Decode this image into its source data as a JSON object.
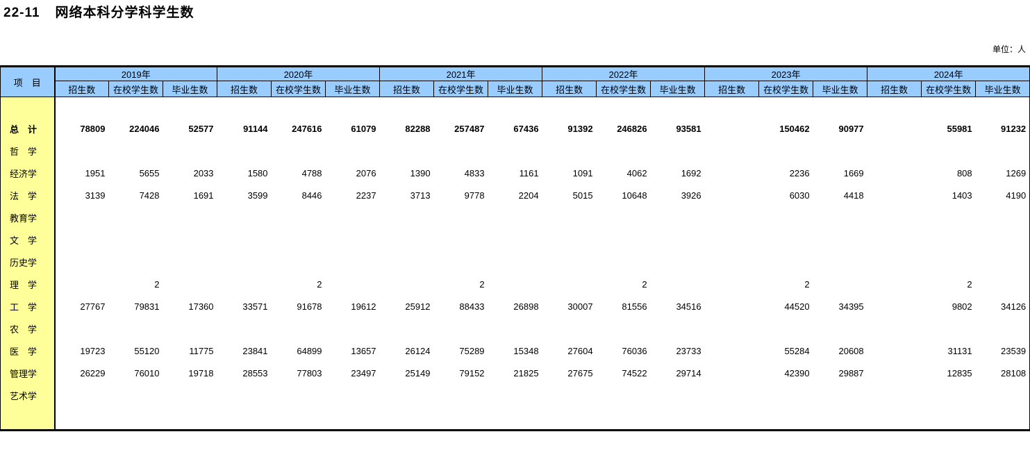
{
  "page": {
    "table_no": "22-11",
    "title": "网络本科分学科学生数",
    "unit_label": "单位：人"
  },
  "colors": {
    "header_bg": "#99CCFF",
    "stub_bg": "#FFFF99",
    "border": "#000000"
  },
  "table": {
    "stub_header": "项　目",
    "years": [
      "2019年",
      "2020年",
      "2021年",
      "2022年",
      "2023年",
      "2024年"
    ],
    "sub_headers": [
      "招生数",
      "在校学生数",
      "毕业生数"
    ],
    "rows": [
      {
        "label": "总　计",
        "bold": true,
        "values": [
          "78809",
          "224046",
          "52577",
          "91144",
          "247616",
          "61079",
          "82288",
          "257487",
          "67436",
          "91392",
          "246826",
          "93581",
          "",
          "150462",
          "90977",
          "",
          "55981",
          "91232"
        ]
      },
      {
        "label": "哲　学",
        "bold": false,
        "values": [
          "",
          "",
          "",
          "",
          "",
          "",
          "",
          "",
          "",
          "",
          "",
          "",
          "",
          "",
          "",
          "",
          "",
          ""
        ]
      },
      {
        "label": "经济学",
        "bold": false,
        "values": [
          "1951",
          "5655",
          "2033",
          "1580",
          "4788",
          "2076",
          "1390",
          "4833",
          "1161",
          "1091",
          "4062",
          "1692",
          "",
          "2236",
          "1669",
          "",
          "808",
          "1269"
        ]
      },
      {
        "label": "法　学",
        "bold": false,
        "values": [
          "3139",
          "7428",
          "1691",
          "3599",
          "8446",
          "2237",
          "3713",
          "9778",
          "2204",
          "5015",
          "10648",
          "3926",
          "",
          "6030",
          "4418",
          "",
          "1403",
          "4190"
        ]
      },
      {
        "label": "教育学",
        "bold": false,
        "values": [
          "",
          "",
          "",
          "",
          "",
          "",
          "",
          "",
          "",
          "",
          "",
          "",
          "",
          "",
          "",
          "",
          "",
          ""
        ]
      },
      {
        "label": "文　学",
        "bold": false,
        "values": [
          "",
          "",
          "",
          "",
          "",
          "",
          "",
          "",
          "",
          "",
          "",
          "",
          "",
          "",
          "",
          "",
          "",
          ""
        ]
      },
      {
        "label": "历史学",
        "bold": false,
        "values": [
          "",
          "",
          "",
          "",
          "",
          "",
          "",
          "",
          "",
          "",
          "",
          "",
          "",
          "",
          "",
          "",
          "",
          ""
        ]
      },
      {
        "label": "理　学",
        "bold": false,
        "values": [
          "",
          "2",
          "",
          "",
          "2",
          "",
          "",
          "2",
          "",
          "",
          "2",
          "",
          "",
          "2",
          "",
          "",
          "2",
          ""
        ]
      },
      {
        "label": "工　学",
        "bold": false,
        "values": [
          "27767",
          "79831",
          "17360",
          "33571",
          "91678",
          "19612",
          "25912",
          "88433",
          "26898",
          "30007",
          "81556",
          "34516",
          "",
          "44520",
          "34395",
          "",
          "9802",
          "34126"
        ]
      },
      {
        "label": "农　学",
        "bold": false,
        "values": [
          "",
          "",
          "",
          "",
          "",
          "",
          "",
          "",
          "",
          "",
          "",
          "",
          "",
          "",
          "",
          "",
          "",
          ""
        ]
      },
      {
        "label": "医　学",
        "bold": false,
        "values": [
          "19723",
          "55120",
          "11775",
          "23841",
          "64899",
          "13657",
          "26124",
          "75289",
          "15348",
          "27604",
          "76036",
          "23733",
          "",
          "55284",
          "20608",
          "",
          "31131",
          "23539"
        ]
      },
      {
        "label": "管理学",
        "bold": false,
        "values": [
          "26229",
          "76010",
          "19718",
          "28553",
          "77803",
          "23497",
          "25149",
          "79152",
          "21825",
          "27675",
          "74522",
          "29714",
          "",
          "42390",
          "29887",
          "",
          "12835",
          "28108"
        ]
      },
      {
        "label": "艺术学",
        "bold": false,
        "values": [
          "",
          "",
          "",
          "",
          "",
          "",
          "",
          "",
          "",
          "",
          "",
          "",
          "",
          "",
          "",
          "",
          "",
          ""
        ]
      }
    ],
    "layout": {
      "stub_col_width": 78,
      "data_col_width": 78
    }
  }
}
